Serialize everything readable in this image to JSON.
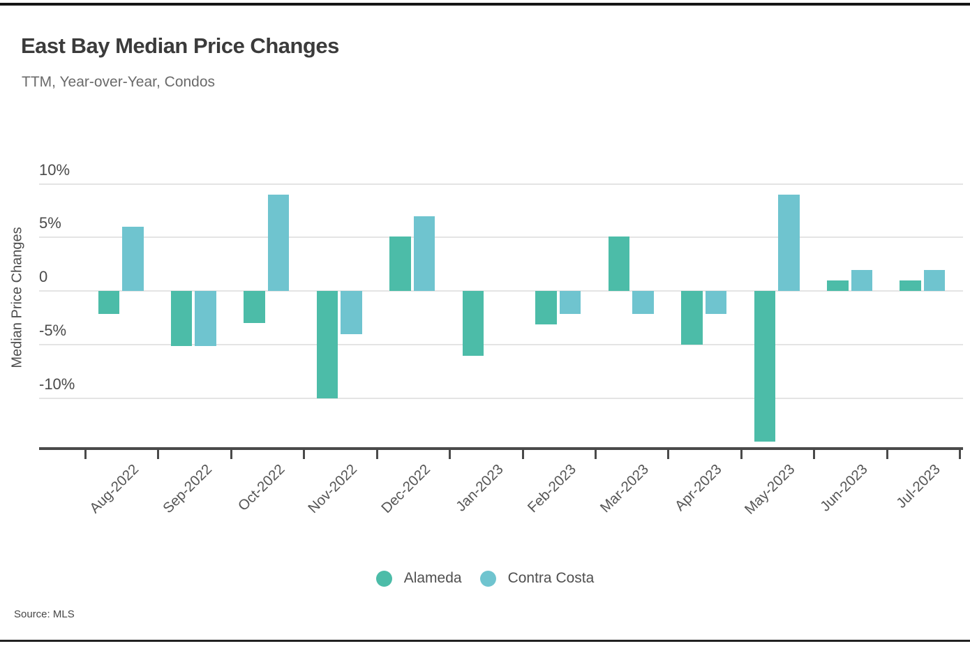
{
  "header": {
    "title": "East Bay Median Price Changes",
    "subtitle": "TTM, Year-over-Year, Condos"
  },
  "source_label": "Source: MLS",
  "chart_data": {
    "type": "bar",
    "title": "East Bay Median Price Changes",
    "subtitle": "TTM, Year-over-Year, Condos",
    "xlabel": "",
    "ylabel": "Median Price Changes",
    "categories": [
      "Aug-2022",
      "Sep-2022",
      "Oct-2022",
      "Nov-2022",
      "Dec-2022",
      "Jan-2023",
      "Feb-2023",
      "Mar-2023",
      "Apr-2023",
      "May-2023",
      "Jun-2023",
      "Jul-2023"
    ],
    "series": [
      {
        "name": "Alameda",
        "color": "#4cbca8",
        "values": [
          -2.1,
          -5.1,
          -3.0,
          -10.0,
          5.1,
          -6.0,
          -3.1,
          5.1,
          -5.0,
          -14.0,
          1.0,
          1.0
        ]
      },
      {
        "name": "Contra Costa",
        "color": "#6fc4cf",
        "values": [
          6.0,
          -5.1,
          9.0,
          -4.0,
          7.0,
          0.0,
          -2.1,
          -2.1,
          -2.1,
          9.0,
          2.0,
          2.0
        ]
      }
    ],
    "yticks": [
      {
        "label": "10%",
        "value": 10
      },
      {
        "label": "5%",
        "value": 5
      },
      {
        "label": "0",
        "value": 0
      },
      {
        "label": "-5%",
        "value": -5
      },
      {
        "label": "-10%",
        "value": -10
      }
    ],
    "ylim": [
      -14.5,
      11.5
    ],
    "grid": true,
    "legend_position": "bottom",
    "axis_color": "#4a4a4a",
    "grid_color": "#e4e4e4",
    "source": "Source: MLS"
  }
}
